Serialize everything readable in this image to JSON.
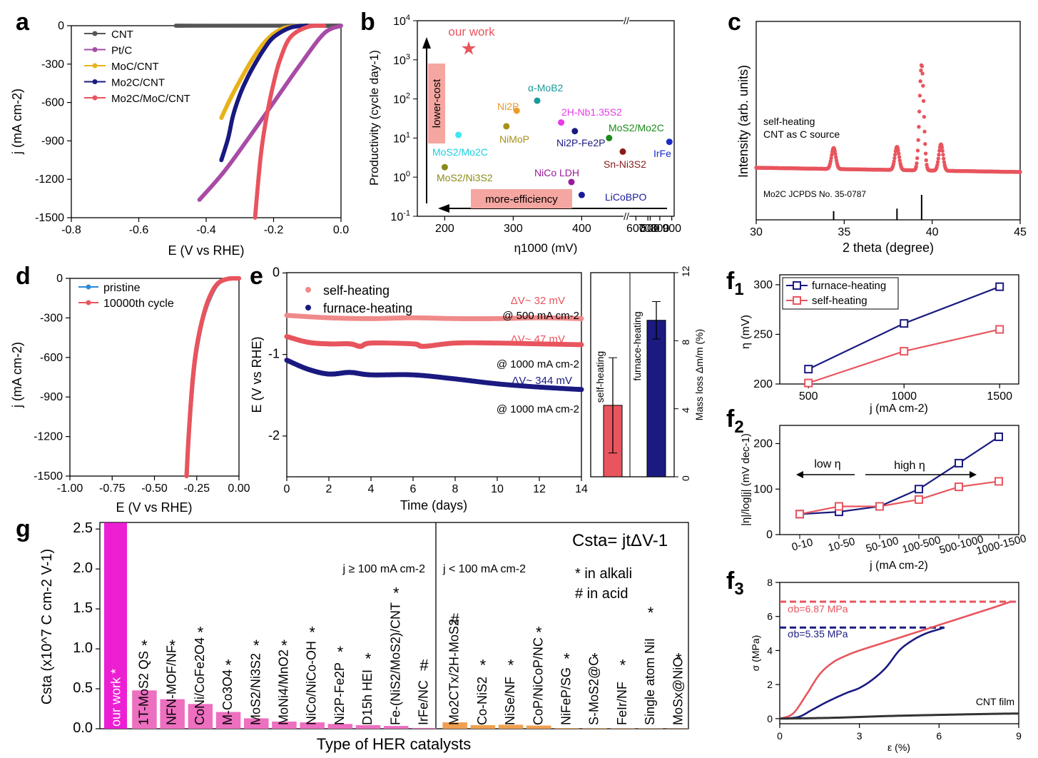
{
  "figure": {
    "panel_letters": {
      "a": "a",
      "b": "b",
      "c": "c",
      "d": "d",
      "e": "e",
      "f": "f",
      "g": "g",
      "s1": "1",
      "s2": "2",
      "s3": "3"
    },
    "colors": {
      "cnt": "#555555",
      "ptc": "#a84ca6",
      "moc": "#e8b21c",
      "mo2c": "#1a1a80",
      "hetero": "#e8555e",
      "self": "#e8555e",
      "furnace": "#1a1a80",
      "magenta": "#ec1fd3",
      "pink": "#ec6fc0",
      "orange": "#f0a050",
      "salmon": "#f5a6a0"
    }
  },
  "chart_data": [
    {
      "id": "a",
      "type": "line",
      "xlabel": "E (V vs RHE)",
      "ylabel": "j (mA cm-2)",
      "xlim": [
        -0.8,
        0.0
      ],
      "ylim": [
        -1500,
        0
      ],
      "xticks": [
        "-0.8",
        "-0.6",
        "-0.4",
        "-0.2",
        "0.0"
      ],
      "yticks": [
        "0",
        "-300",
        "-600",
        "-900",
        "-1200",
        "-1500"
      ],
      "legend": [
        "CNT",
        "Pt/C",
        "MoC/CNT",
        "Mo2C/CNT",
        "Mo2C/MoC/CNT"
      ],
      "series": [
        {
          "name": "CNT",
          "x": [
            -0.49,
            -0.3,
            -0.1,
            0.0
          ],
          "y": [
            0,
            0,
            0,
            0
          ]
        },
        {
          "name": "Pt/C",
          "x": [
            -0.42,
            -0.35,
            -0.28,
            -0.2,
            -0.12,
            -0.05,
            0.0
          ],
          "y": [
            -1360,
            -1150,
            -900,
            -600,
            -300,
            -60,
            0
          ]
        },
        {
          "name": "MoC/CNT",
          "x": [
            -0.355,
            -0.33,
            -0.3,
            -0.26,
            -0.22,
            -0.18,
            -0.14,
            -0.1
          ],
          "y": [
            -720,
            -580,
            -430,
            -250,
            -110,
            -30,
            -5,
            0
          ]
        },
        {
          "name": "Mo2C/CNT",
          "x": [
            -0.355,
            -0.335,
            -0.32,
            -0.3,
            -0.28,
            -0.26,
            -0.23,
            -0.2,
            -0.15,
            -0.1
          ],
          "y": [
            -1050,
            -880,
            -700,
            -540,
            -420,
            -320,
            -190,
            -90,
            -15,
            0
          ]
        },
        {
          "name": "Mo2C/MoC/CNT",
          "x": [
            -0.255,
            -0.245,
            -0.235,
            -0.22,
            -0.2,
            -0.18,
            -0.15,
            -0.1,
            -0.05
          ],
          "y": [
            -1500,
            -1200,
            -950,
            -700,
            -450,
            -260,
            -90,
            -10,
            0
          ]
        }
      ]
    },
    {
      "id": "b",
      "type": "scatter",
      "xlabel": "η1000 (mV)",
      "ylabel": "Productivity (cycle day-1)",
      "xticks": [
        "200",
        "300",
        "400",
        "500",
        "600",
        "700",
        "800",
        "900"
      ],
      "yticks": [
        "10-1",
        "100",
        "101",
        "102",
        "103",
        "104"
      ],
      "annotations": {
        "our_work": "our work",
        "lower_cost": "lower-cost",
        "more_efficiency": "more-efficiency"
      },
      "points": [
        {
          "label": "our work",
          "eta": 235,
          "prod": 2000
        },
        {
          "label": "MoS2/Mo2C",
          "eta": 220,
          "prod": 12
        },
        {
          "label": "MoS2/Ni3S2",
          "eta": 200,
          "prod": 1.8
        },
        {
          "label": "Ni2P",
          "eta": 305,
          "prod": 50
        },
        {
          "label": "NiMoP",
          "eta": 290,
          "prod": 20
        },
        {
          "label": "α-MoB2",
          "eta": 335,
          "prod": 90
        },
        {
          "label": "2H-Nb1.35S2",
          "eta": 370,
          "prod": 25
        },
        {
          "label": "Ni2P-Fe2P",
          "eta": 390,
          "prod": 15
        },
        {
          "label": "NiCo LDH",
          "eta": 385,
          "prod": 0.75
        },
        {
          "label": "LiCoBPO",
          "eta": 400,
          "prod": 0.35
        },
        {
          "label": "MoS2/Mo2C",
          "eta": 440,
          "prod": 10
        },
        {
          "label": "Sn-Ni3S2",
          "eta": 460,
          "prod": 4.5
        },
        {
          "label": "IrFe",
          "eta": 880,
          "prod": 8
        }
      ]
    },
    {
      "id": "c",
      "type": "line",
      "xlabel": "2 theta (degree)",
      "ylabel": "Intensity (arb. units)",
      "xlim": [
        30,
        45
      ],
      "xticks": [
        "30",
        "35",
        "40",
        "45"
      ],
      "annotations": {
        "line1": "self-heating",
        "line2": "CNT as C source",
        "ref": "Mo2C JCPDS No. 35-0787"
      },
      "peaks": [
        {
          "x": 34.4,
          "h": 0.2
        },
        {
          "x": 38.0,
          "h": 0.22
        },
        {
          "x": 39.4,
          "h": 1.0
        },
        {
          "x": 40.5,
          "h": 0.25
        }
      ],
      "ref_lines": [
        {
          "x": 34.4,
          "h": 0.35
        },
        {
          "x": 38.0,
          "h": 0.45
        },
        {
          "x": 39.4,
          "h": 1.0
        }
      ]
    },
    {
      "id": "d",
      "type": "line",
      "xlabel": "E (V vs RHE)",
      "ylabel": "j (mA cm-2)",
      "xlim": [
        -1.0,
        0.0
      ],
      "ylim": [
        -1500,
        0
      ],
      "xticks": [
        "-1.00",
        "-0.75",
        "-0.50",
        "-0.25",
        "0.00"
      ],
      "yticks": [
        "0",
        "-300",
        "-600",
        "-900",
        "-1200",
        "-1500"
      ],
      "legend": [
        "pristine",
        "10000th cycle"
      ],
      "series": [
        {
          "name": "pristine",
          "x": [
            -0.3,
            -0.29,
            -0.275,
            -0.26,
            -0.24,
            -0.21,
            -0.17,
            -0.12,
            -0.05,
            0.0
          ],
          "y": [
            -1300,
            -1100,
            -850,
            -650,
            -480,
            -300,
            -150,
            -40,
            0,
            0
          ]
        },
        {
          "name": "10000th cycle",
          "x": [
            -0.31,
            -0.3,
            -0.285,
            -0.27,
            -0.25,
            -0.22,
            -0.18,
            -0.13,
            -0.07,
            0.0
          ],
          "y": [
            -1500,
            -1250,
            -950,
            -720,
            -520,
            -330,
            -160,
            -45,
            -5,
            0
          ]
        }
      ]
    },
    {
      "id": "e",
      "type": "line",
      "xlabel": "Time  (days)",
      "ylabel": "E (V vs RHE)",
      "xlim": [
        0,
        14
      ],
      "ylim": [
        -2.5,
        0.1
      ],
      "xticks": [
        "0",
        "2",
        "4",
        "6",
        "8",
        "10",
        "12",
        "14"
      ],
      "yticks": [
        "0",
        "-1",
        "-2"
      ],
      "legend": [
        "self-heating",
        "furnace-heating"
      ],
      "annotations": {
        "dv1": "ΔV~ 32 mV",
        "cd1": "@ 500 mA cm-2",
        "dv2": "ΔV~ 47 mV",
        "cd2": "@ 1000 mA cm-2",
        "dv3": "ΔV~ 344 mV",
        "cd3": "@ 1000 mA cm-2"
      },
      "series": [
        {
          "name": "self-heating 500",
          "x": [
            0,
            2,
            4,
            6,
            8,
            10,
            12,
            14
          ],
          "y": [
            -0.52,
            -0.55,
            -0.56,
            -0.55,
            -0.56,
            -0.56,
            -0.55,
            -0.56
          ]
        },
        {
          "name": "self-heating 1000",
          "x": [
            0,
            1,
            2,
            3,
            3.5,
            4,
            6,
            6.5,
            8,
            10,
            12,
            14
          ],
          "y": [
            -0.78,
            -0.85,
            -0.87,
            -0.87,
            -0.9,
            -0.86,
            -0.87,
            -0.9,
            -0.86,
            -0.86,
            -0.87,
            -0.88
          ]
        },
        {
          "name": "furnace-heating 1000",
          "x": [
            0,
            1,
            2,
            3,
            4,
            6,
            8,
            10,
            12,
            14
          ],
          "y": [
            -1.07,
            -1.18,
            -1.24,
            -1.22,
            -1.25,
            -1.25,
            -1.3,
            -1.36,
            -1.4,
            -1.43
          ]
        }
      ],
      "inset": {
        "ylabel": "Mass loss Δm/m (%)",
        "ylim": [
          0,
          12
        ],
        "yticks": [
          "0",
          "4",
          "8",
          "12"
        ],
        "bars": [
          {
            "label": "self-heating",
            "value": 4.2,
            "err": 2.8
          },
          {
            "label": "furnace-heating",
            "value": 9.2,
            "err": 1.1
          }
        ]
      }
    },
    {
      "id": "f1",
      "type": "line",
      "xlabel": "j (mA cm-2)",
      "ylabel": "η (mV)",
      "xlim": [
        350,
        1600
      ],
      "ylim": [
        200,
        310
      ],
      "xticks": [
        "500",
        "1000",
        "1500"
      ],
      "yticks": [
        "200",
        "250",
        "300"
      ],
      "legend": [
        "furnace-heating",
        "self-heating"
      ],
      "series": [
        {
          "name": "furnace-heating",
          "x": [
            500,
            1000,
            1500
          ],
          "y": [
            215,
            261,
            298
          ]
        },
        {
          "name": "self-heating",
          "x": [
            500,
            1000,
            1500
          ],
          "y": [
            201,
            233,
            255
          ]
        }
      ]
    },
    {
      "id": "f2",
      "type": "line",
      "xlabel": "j (mA cm-2)",
      "ylabel": "|η|/log|j| (mV dec-1)",
      "categories": [
        "0-10",
        "10-50",
        "50-100",
        "100-500",
        "500-1000",
        "1000-1500"
      ],
      "ylim": [
        0,
        240
      ],
      "yticks": [
        "0",
        "100",
        "200"
      ],
      "annotations": {
        "low": "low η",
        "high": "high η"
      },
      "series": [
        {
          "name": "furnace-heating",
          "values": [
            45,
            50,
            62,
            100,
            157,
            215
          ]
        },
        {
          "name": "self-heating",
          "values": [
            45,
            62,
            62,
            77,
            105,
            117
          ]
        }
      ]
    },
    {
      "id": "f3",
      "type": "line",
      "xlabel": "ε (%)",
      "ylabel": "σ (MPa)",
      "xlim": [
        0,
        9
      ],
      "ylim": [
        -0.3,
        8
      ],
      "xticks": [
        "0",
        "3",
        "6",
        "9"
      ],
      "yticks": [
        "0",
        "2",
        "4",
        "6",
        "8"
      ],
      "annotations": {
        "sb1": "σb=6.87 MPa",
        "sb2": "σb=5.35 MPa",
        "cnt": "CNT film"
      },
      "hlines": [
        {
          "y": 6.87,
          "name": "self-heating"
        },
        {
          "y": 5.35,
          "name": "furnace-heating"
        }
      ],
      "series": [
        {
          "name": "self-heating",
          "x": [
            0,
            0.5,
            1.0,
            1.5,
            2.0,
            2.5,
            3.0,
            4.0,
            5.0,
            6.0,
            7.0,
            8.0,
            8.7
          ],
          "y": [
            0,
            0.3,
            1.4,
            2.6,
            3.3,
            3.7,
            4.0,
            4.5,
            5.0,
            5.5,
            6.0,
            6.5,
            6.87
          ]
        },
        {
          "name": "furnace-heating",
          "x": [
            0,
            0.7,
            1.2,
            1.8,
            2.5,
            3.0,
            3.5,
            4.0,
            4.5,
            5.0,
            5.5,
            6.0,
            6.2
          ],
          "y": [
            0,
            0.1,
            0.5,
            1.0,
            1.5,
            1.8,
            2.3,
            3.0,
            4.0,
            4.6,
            5.0,
            5.25,
            5.35
          ]
        },
        {
          "name": "CNT film",
          "x": [
            0,
            2,
            4,
            6,
            8,
            9
          ],
          "y": [
            0,
            0.05,
            0.15,
            0.22,
            0.28,
            0.3
          ]
        }
      ]
    },
    {
      "id": "g",
      "type": "bar",
      "xlabel": "Type of HER catalysts",
      "ylabel": "Csta (x10^7 C cm-2 V-1)",
      "ylim": [
        0,
        2.6
      ],
      "yticks": [
        "0.0",
        "0.5",
        "1.0",
        "1.5",
        "2.0",
        "2.5"
      ],
      "annotations": {
        "group1": "j ≥ 100 mA cm-2",
        "group2": "j < 100 mA cm-2",
        "formula": "Csta= jtΔV-1",
        "alkali": "*  in alkali",
        "acid": "#  in acid"
      },
      "categories": [
        "our work",
        "1T-MoS2 QS",
        "NFN-MOF/NF",
        "CoNi/CoFe2O4",
        "M-Co3O4",
        "MoS2/Ni3S2",
        "MoNi4/MnO2",
        "NiCo/NiCo-OH",
        "Ni2P-Fe2P",
        "D15h HEI",
        "Fe-(NiS2/MoS2)/CNT",
        "IrFe/NC",
        "Mo2CTx/2H-MoS2",
        "Co-NiS2",
        "NiSe/NF",
        "CoP/NiCoP/NC",
        "NiFeP/SG",
        "S-MoS2@C",
        "FeIr/NF",
        "Single atom NiI",
        "MoSx@NiO"
      ],
      "values": [
        2.58,
        0.48,
        0.37,
        0.31,
        0.21,
        0.13,
        0.09,
        0.08,
        0.06,
        0.045,
        0.035,
        0.01,
        0.08,
        0.045,
        0.05,
        0.04,
        0.008,
        0.006,
        0.005,
        0.004,
        0.003
      ],
      "markers": [
        "*",
        "*",
        "*",
        "*",
        "*",
        "*",
        "*",
        "*",
        "*",
        "*",
        "*",
        "#",
        "#",
        "*",
        "*",
        "*",
        "*",
        "*",
        "*",
        "*",
        "*"
      ]
    }
  ]
}
